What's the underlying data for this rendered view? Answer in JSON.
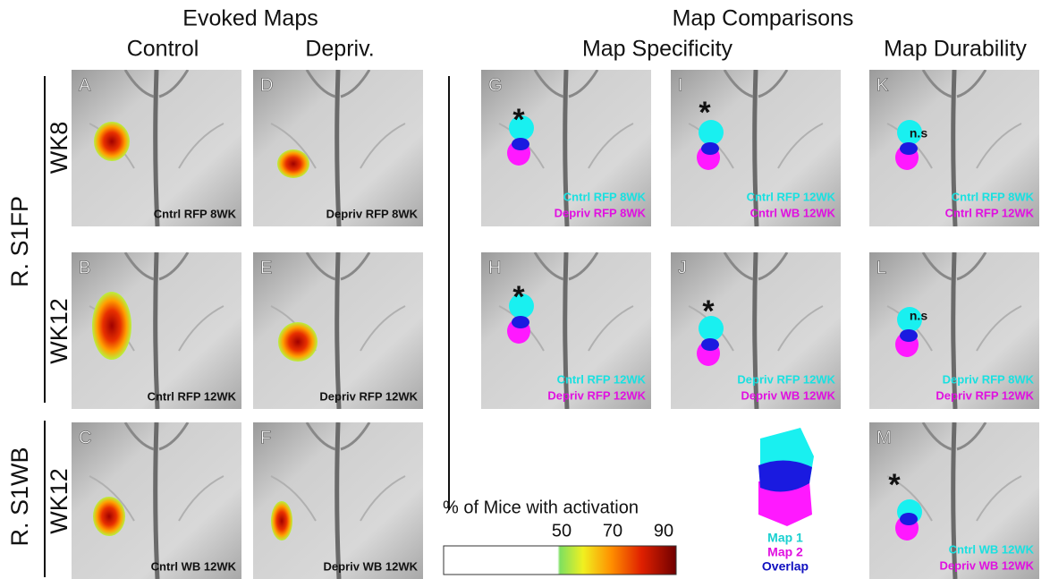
{
  "headers": {
    "evoked": "Evoked Maps",
    "control": "Control",
    "depriv": "Depriv.",
    "comparisons": "Map Comparisons",
    "specificity": "Map Specificity",
    "durability": "Map Durability"
  },
  "rows": {
    "s1fp": "R. S1FP",
    "wk8": "WK8",
    "wk12a": "WK12",
    "s1wb": "R. S1WB",
    "wk12b": "WK12"
  },
  "colorbar": {
    "title": "% of Mice with activation",
    "ticks": [
      "50",
      "70",
      "90"
    ]
  },
  "legend": [
    "Map 1",
    "Map 2",
    "Overlap"
  ],
  "panels": [
    {
      "letter": "A",
      "caption": [
        "Cntrl RFP 8WK"
      ]
    },
    {
      "letter": "B",
      "caption": [
        "Cntrl RFP 12WK"
      ]
    },
    {
      "letter": "C",
      "caption": [
        "Cntrl WB 12WK"
      ]
    },
    {
      "letter": "D",
      "caption": [
        "Depriv RFP 8WK"
      ]
    },
    {
      "letter": "E",
      "caption": [
        "Depriv RFP 12WK"
      ]
    },
    {
      "letter": "F",
      "caption": [
        "Depriv WB 12WK"
      ]
    },
    {
      "letter": "G",
      "marker": "*",
      "caption": [
        "Cntrl RFP 8WK",
        "Depriv RFP 8WK"
      ]
    },
    {
      "letter": "H",
      "marker": "*",
      "caption": [
        "Cntrl RFP 12WK",
        "Depriv RFP 12WK"
      ]
    },
    {
      "letter": "I",
      "marker": "*",
      "caption": [
        "Cntrl RFP 12WK",
        "Cntrl WB 12WK"
      ]
    },
    {
      "letter": "J",
      "marker": "*",
      "caption": [
        "Depriv RFP 12WK",
        "Depriv WB 12WK"
      ]
    },
    {
      "letter": "K",
      "marker": "n.s",
      "caption": [
        "Cntrl RFP 8WK",
        "Cntrl RFP 12WK"
      ]
    },
    {
      "letter": "L",
      "marker": "n.s",
      "caption": [
        "Depriv RFP 8WK",
        "Depriv RFP 12WK"
      ]
    },
    {
      "letter": "M",
      "marker": "*",
      "caption": [
        "Cntrl WB 12WK",
        "Depriv WB 12WK"
      ]
    }
  ]
}
